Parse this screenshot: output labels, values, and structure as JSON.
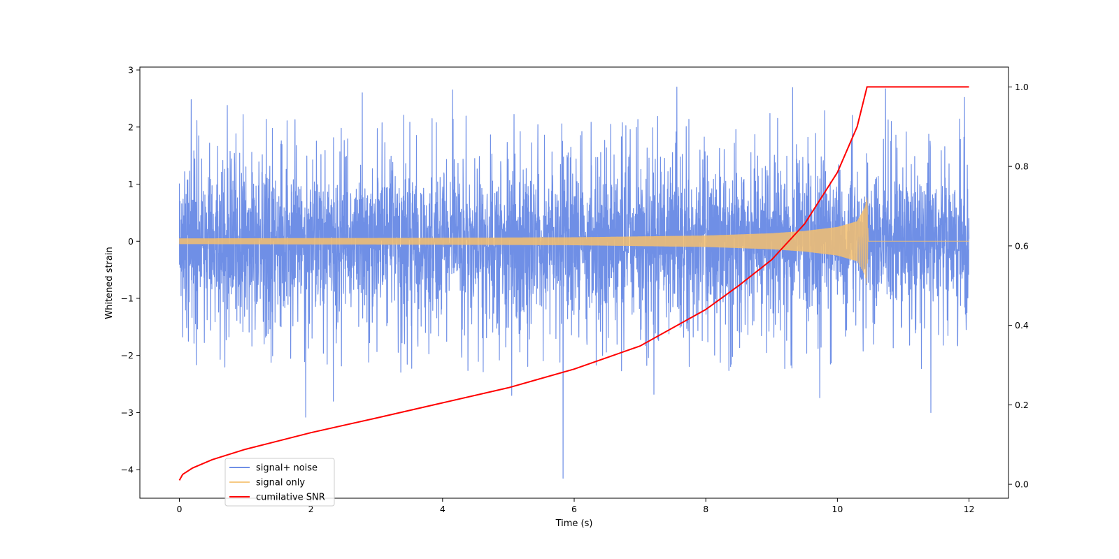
{
  "chart_data": {
    "type": "line",
    "xlabel": "Time (s)",
    "ylabel": "Whitened strain",
    "ylabel_right": "",
    "xlim": [
      -0.6,
      12.6
    ],
    "ylim_left": [
      -4.5,
      3.05
    ],
    "ylim_right": [
      -0.035,
      1.05
    ],
    "x_ticks": [
      0,
      2,
      4,
      6,
      8,
      10,
      12
    ],
    "y_ticks_left": [
      -4,
      -3,
      -2,
      -1,
      0,
      1,
      2,
      3
    ],
    "y_ticks_right": [
      0.0,
      0.2,
      0.4,
      0.6,
      0.8,
      1.0
    ],
    "grid": false,
    "legend_position": "lower-left",
    "series": [
      {
        "name": "signal+ noise",
        "axis": "left",
        "color": "#6f8fe6",
        "kind": "dense noise trace",
        "x_range": [
          0,
          12
        ],
        "typical_band": [
          -1.3,
          1.3
        ],
        "notable_peaks": [
          {
            "x": 0.18,
            "y": 2.48
          },
          {
            "x": 0.73,
            "y": 2.38
          },
          {
            "x": 1.92,
            "y": -3.08
          },
          {
            "x": 2.34,
            "y": -2.8
          },
          {
            "x": 2.78,
            "y": 2.6
          },
          {
            "x": 4.15,
            "y": 2.65
          },
          {
            "x": 5.05,
            "y": -2.7
          },
          {
            "x": 5.83,
            "y": -4.15
          },
          {
            "x": 7.21,
            "y": -2.68
          },
          {
            "x": 7.56,
            "y": 2.7
          },
          {
            "x": 9.32,
            "y": 2.69
          },
          {
            "x": 9.73,
            "y": -2.74
          },
          {
            "x": 10.73,
            "y": 2.67
          },
          {
            "x": 11.42,
            "y": -3.0
          },
          {
            "x": 11.93,
            "y": 2.52
          }
        ]
      },
      {
        "name": "signal only",
        "axis": "left",
        "color": "#f5c06e",
        "kind": "chirp envelope",
        "envelope": [
          {
            "x": 0.0,
            "amp": 0.05
          },
          {
            "x": 2.0,
            "amp": 0.055
          },
          {
            "x": 4.0,
            "amp": 0.06
          },
          {
            "x": 6.0,
            "amp": 0.07
          },
          {
            "x": 8.0,
            "amp": 0.1
          },
          {
            "x": 9.0,
            "amp": 0.14
          },
          {
            "x": 9.5,
            "amp": 0.18
          },
          {
            "x": 10.0,
            "amp": 0.25
          },
          {
            "x": 10.3,
            "amp": 0.35
          },
          {
            "x": 10.42,
            "amp": 0.6
          },
          {
            "x": 10.45,
            "amp": 0.78
          },
          {
            "x": 10.47,
            "amp": 0.0
          },
          {
            "x": 12.0,
            "amp": 0.0
          }
        ]
      },
      {
        "name": "cumilative SNR",
        "axis": "right",
        "color": "#ff0000",
        "kind": "line",
        "points": [
          {
            "x": 0.0,
            "y": 0.01
          },
          {
            "x": 0.05,
            "y": 0.025
          },
          {
            "x": 0.2,
            "y": 0.041
          },
          {
            "x": 0.5,
            "y": 0.062
          },
          {
            "x": 1.0,
            "y": 0.088
          },
          {
            "x": 2.0,
            "y": 0.13
          },
          {
            "x": 3.0,
            "y": 0.167
          },
          {
            "x": 4.0,
            "y": 0.205
          },
          {
            "x": 5.0,
            "y": 0.243
          },
          {
            "x": 6.0,
            "y": 0.29
          },
          {
            "x": 7.0,
            "y": 0.348
          },
          {
            "x": 8.0,
            "y": 0.44
          },
          {
            "x": 8.5,
            "y": 0.5
          },
          {
            "x": 9.0,
            "y": 0.565
          },
          {
            "x": 9.5,
            "y": 0.655
          },
          {
            "x": 10.0,
            "y": 0.785
          },
          {
            "x": 10.3,
            "y": 0.9
          },
          {
            "x": 10.45,
            "y": 1.0
          },
          {
            "x": 12.0,
            "y": 1.0
          }
        ]
      }
    ]
  }
}
